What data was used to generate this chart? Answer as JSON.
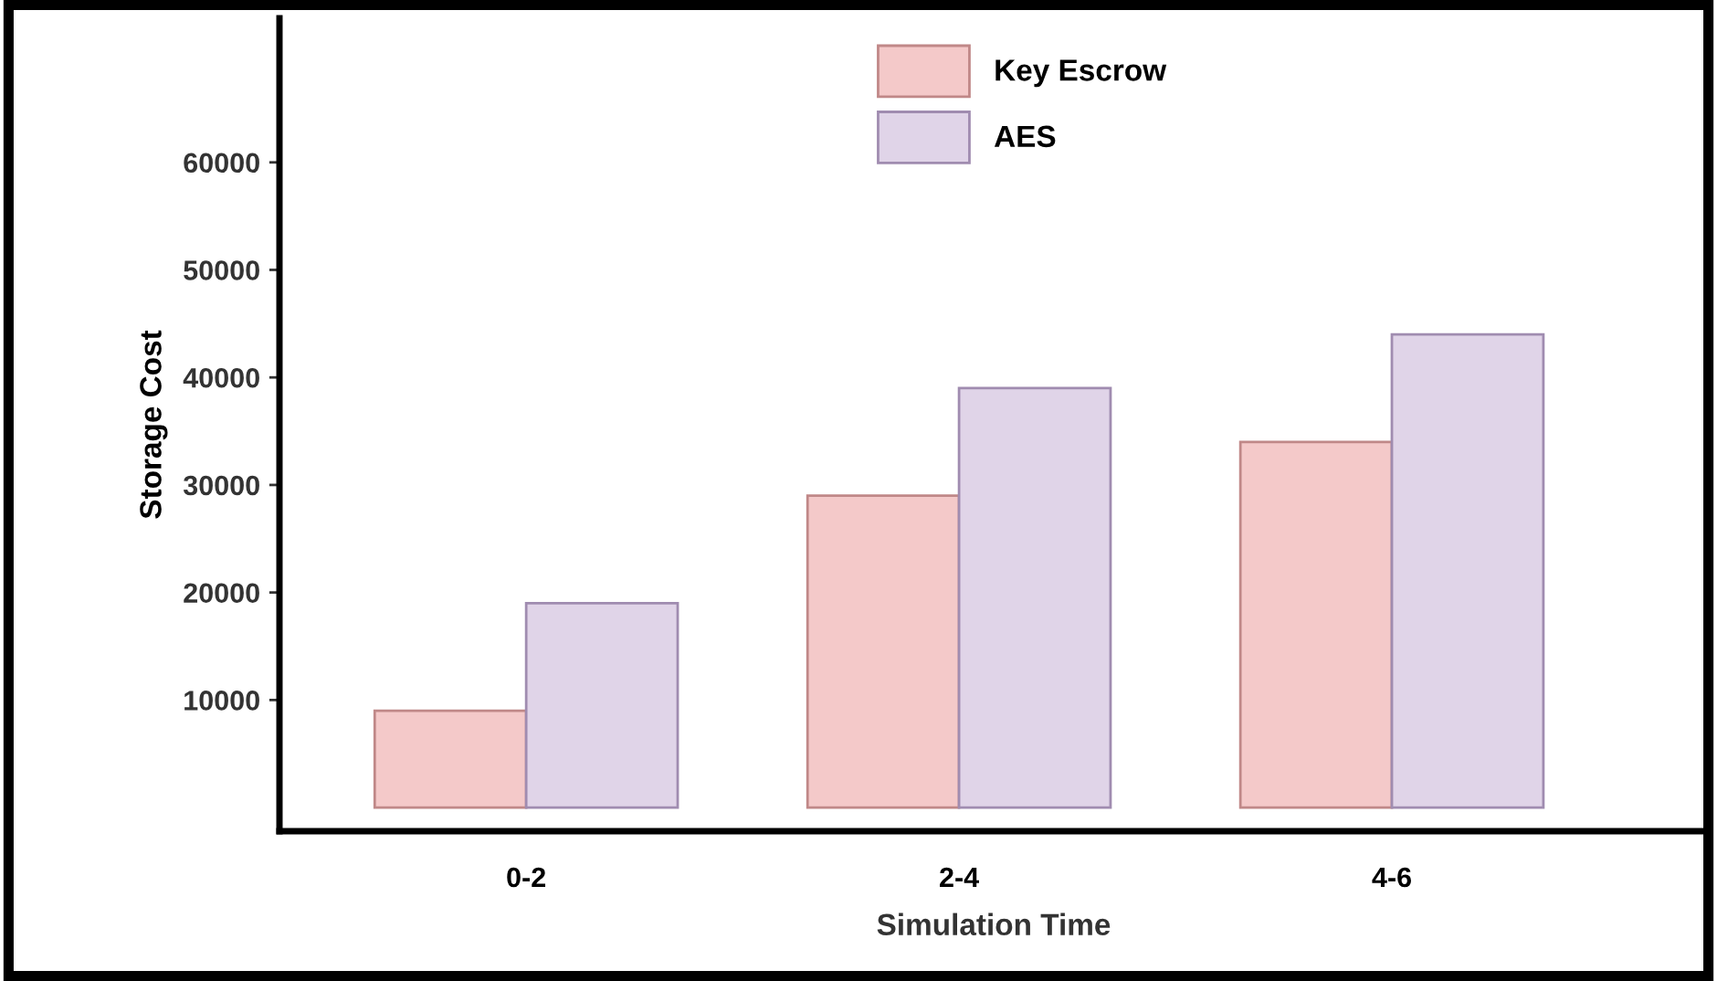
{
  "chart_data": {
    "type": "bar",
    "xlabel": "Simulation Time",
    "ylabel": "Storage Cost",
    "categories": [
      "0-2",
      "2-4",
      "4-6"
    ],
    "series": [
      {
        "name": "Key Escrow",
        "color": "#f4c9c9",
        "values": [
          9000,
          29000,
          34000
        ]
      },
      {
        "name": "AES",
        "color": "#e0d4e8",
        "values": [
          19000,
          39000,
          44000
        ]
      }
    ],
    "ylim": [
      -2200,
      73400
    ],
    "yticks": [
      10000,
      20000,
      30000,
      40000,
      50000,
      60000
    ],
    "grid": false,
    "legend": "top"
  }
}
